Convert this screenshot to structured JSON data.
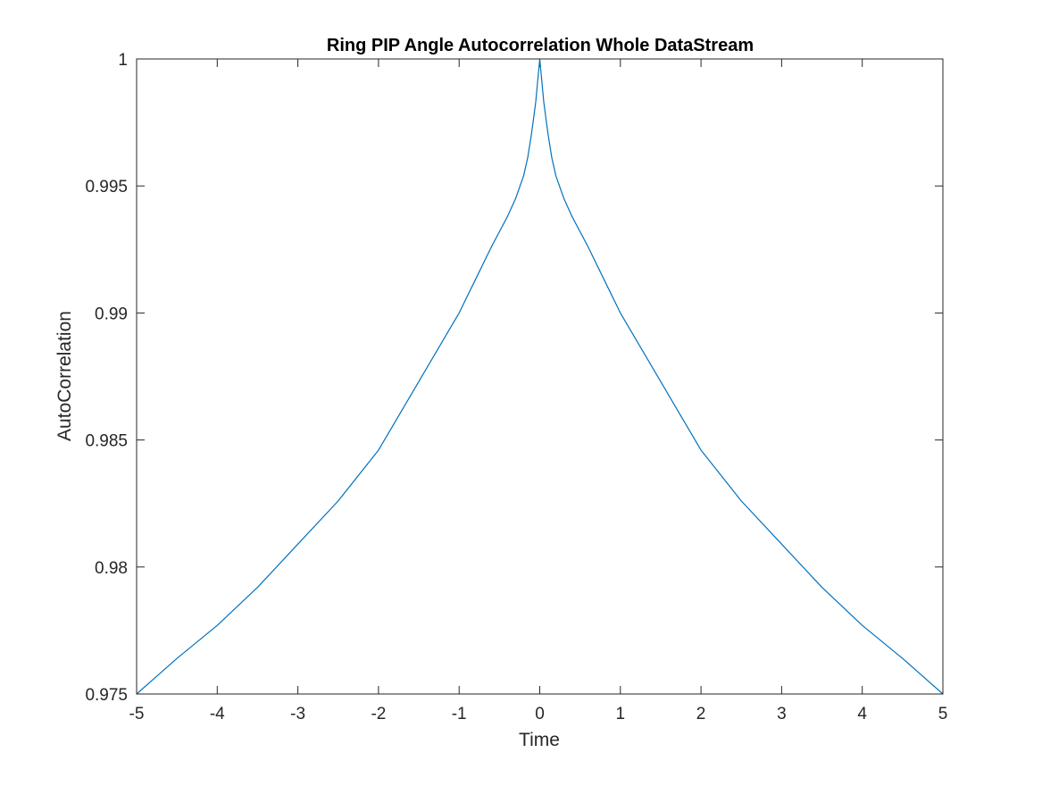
{
  "chart_data": {
    "type": "line",
    "title": "Ring PIP Angle Autocorrelation Whole DataStream",
    "xlabel": "Time",
    "ylabel": "AutoCorrelation",
    "xlim": [
      -5,
      5
    ],
    "ylim": [
      0.975,
      1
    ],
    "xticks": [
      -5,
      -4,
      -3,
      -2,
      -1,
      0,
      1,
      2,
      3,
      4,
      5
    ],
    "xtick_labels": [
      "-5",
      "-4",
      "-3",
      "-2",
      "-1",
      "0",
      "1",
      "2",
      "3",
      "4",
      "5"
    ],
    "yticks": [
      0.975,
      0.98,
      0.985,
      0.99,
      0.995,
      1
    ],
    "ytick_labels": [
      "0.975",
      "0.98",
      "0.985",
      "0.99",
      "0.995",
      "1"
    ],
    "grid": false,
    "box": true,
    "series": [
      {
        "color": "#0072BD",
        "x": [
          -5,
          -4.5,
          -4,
          -3.5,
          -3,
          -2.5,
          -2,
          -1.5,
          -1,
          -0.8,
          -0.6,
          -0.5,
          -0.4,
          -0.3,
          -0.2,
          -0.15,
          -0.1,
          -0.05,
          0,
          0.05,
          0.1,
          0.15,
          0.2,
          0.3,
          0.4,
          0.5,
          0.6,
          0.8,
          1,
          1.5,
          2,
          2.5,
          3,
          3.5,
          4,
          4.5,
          5
        ],
        "y": [
          0.975,
          0.9764,
          0.9777,
          0.9792,
          0.9809,
          0.9826,
          0.9846,
          0.9873,
          0.99,
          0.9913,
          0.9926,
          0.9932,
          0.9938,
          0.9945,
          0.9954,
          0.9961,
          0.9971,
          0.9983,
          1.0,
          0.9983,
          0.9971,
          0.9961,
          0.9954,
          0.9945,
          0.9938,
          0.9932,
          0.9926,
          0.9913,
          0.99,
          0.9873,
          0.9846,
          0.9826,
          0.9809,
          0.9792,
          0.9777,
          0.9764,
          0.975
        ]
      }
    ]
  }
}
